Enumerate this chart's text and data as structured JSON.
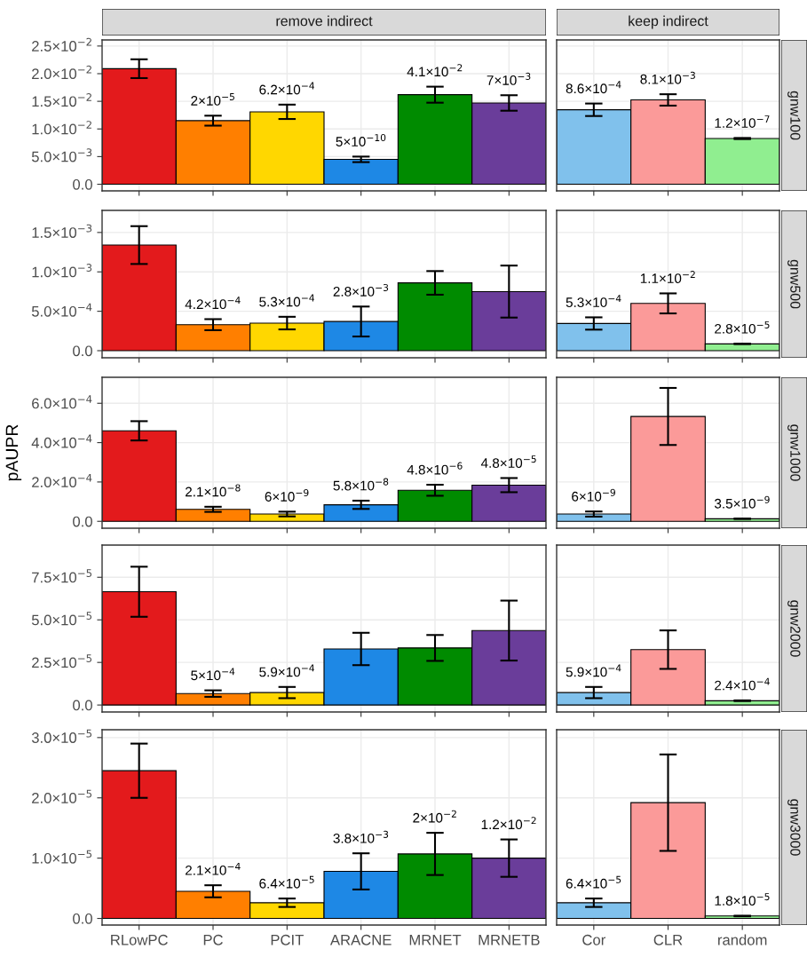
{
  "chart_data": [
    {
      "type": "bar",
      "title": "remove indirect",
      "categories": [
        "RLowPC",
        "PC",
        "PCIT",
        "ARACNE",
        "MRNET",
        "MRNETB"
      ],
      "values": [
        0.0209,
        0.0115,
        0.0131,
        0.0045,
        0.0162,
        0.0147
      ],
      "errors": [
        0.0017,
        0.0009,
        0.0013,
        0.0005,
        0.00145,
        0.0014
      ],
      "colors": [
        "#e31a1c",
        "#ff7f00",
        "#ffd700",
        "#1e88e5",
        "#008b00",
        "#6a3d9a"
      ],
      "ylim": [
        -0.0012,
        0.0261
      ],
      "yticks": [
        {
          "value": 0,
          "label": "0.0"
        },
        {
          "value": 0.005,
          "label": "5.0×10$^{−3}$"
        },
        {
          "value": 0.01,
          "label": "1.0×10$^{−2}$"
        },
        {
          "value": 0.015,
          "label": "1.5×10$^{−2}$"
        },
        {
          "value": 0.02,
          "label": "2.0×10$^{−2}$"
        },
        {
          "value": 0.025,
          "label": "2.5×10$^{−2}$"
        }
      ],
      "grid": true,
      "tick_labels": "y",
      "annotations": [
        {
          "text": "2×10$^{−5}$",
          "x": "PC",
          "y": 0.0124
        },
        {
          "text": "6.2×10$^{−4}$",
          "x": "PCIT",
          "y": 0.0144
        },
        {
          "text": "5×10$^{−10}$",
          "x": "ARACNE",
          "y": 0.005
        },
        {
          "text": "4.1×10$^{−2}$",
          "x": "MRNET",
          "y": 0.01765
        },
        {
          "text": "7×10$^{−3}$",
          "x": "MRNETB",
          "y": 0.0161
        }
      ]
    },
    {
      "type": "bar",
      "title": "keep indirect",
      "categories": [
        "Cor",
        "CLR",
        "random"
      ],
      "values": [
        0.01347,
        0.01525,
        0.00827
      ],
      "errors": [
        0.00113,
        0.00103,
        0.0001
      ],
      "colors": [
        "#80c1ec",
        "#fb9a99",
        "#90ee90"
      ],
      "ylim": [
        -0.0012,
        0.0261
      ],
      "yticks": [
        0,
        0.005,
        0.01,
        0.015,
        0.02,
        0.025
      ],
      "grid": true,
      "tick_labels": false,
      "annotations": [
        "gnw100",
        {
          "text": "8.6×10$^{−4}$",
          "x": "Cor",
          "y": 0.0146
        },
        {
          "text": "8.1×10$^{−3}$",
          "x": "CLR",
          "y": 0.01628
        },
        {
          "text": "1.2×10$^{−7}$",
          "x": "random",
          "y": 0.00837
        }
      ]
    },
    {
      "type": "bar",
      "categories": [
        "RLowPC",
        "PC",
        "PCIT",
        "ARACNE",
        "MRNET",
        "MRNETB"
      ],
      "values": [
        0.00134,
        0.00033,
        0.00035,
        0.00037,
        0.00086,
        0.00075
      ],
      "errors": [
        0.00024,
        7e-05,
        8e-05,
        0.00019,
        0.00015,
        0.00033
      ],
      "colors": [
        "#e31a1c",
        "#ff7f00",
        "#ffd700",
        "#1e88e5",
        "#008b00",
        "#6a3d9a"
      ],
      "ylim": [
        -9e-05,
        0.00178
      ],
      "yticks": [
        {
          "value": 0,
          "label": "0.0"
        },
        {
          "value": 0.0005,
          "label": "5.0×10$^{−4}$"
        },
        {
          "value": 0.001,
          "label": "1.0×10$^{−3}$"
        },
        {
          "value": 0.0015,
          "label": "1.5×10$^{−3}$"
        }
      ],
      "grid": true,
      "tick_labels": "y",
      "annotations": [
        {
          "text": "4.2×10$^{−4}$",
          "x": "PC",
          "y": 0.0004
        },
        {
          "text": "5.3×10$^{−4}$",
          "x": "PCIT",
          "y": 0.00043
        },
        {
          "text": "2.8×10$^{−3}$",
          "x": "ARACNE",
          "y": 0.00056
        }
      ]
    },
    {
      "type": "bar",
      "categories": [
        "Cor",
        "CLR",
        "random"
      ],
      "values": [
        0.000345,
        0.0006,
        8.6e-05
      ],
      "errors": [
        7.8e-05,
        0.000127,
        2e-06
      ],
      "colors": [
        "#80c1ec",
        "#fb9a99",
        "#90ee90"
      ],
      "ylim": [
        -9e-05,
        0.00178
      ],
      "yticks": [
        0,
        0.0005,
        0.001,
        0.0015
      ],
      "grid": true,
      "tick_labels": false,
      "annotations": [
        "gnw500",
        {
          "text": "5.3×10$^{−4}$",
          "x": "Cor",
          "y": 0.000423
        },
        {
          "text": "1.1×10$^{−2}$",
          "x": "CLR",
          "y": 0.000727
        },
        {
          "text": "2.8×10$^{−5}$",
          "x": "random",
          "y": 8.8e-05
        }
      ]
    },
    {
      "type": "bar",
      "ylabel": "pAUPR",
      "categories": [
        "RLowPC",
        "PC",
        "PCIT",
        "ARACNE",
        "MRNET",
        "MRNETB"
      ],
      "values": [
        0.00046,
        6.1e-05,
        3.7e-05,
        8.4e-05,
        0.000158,
        0.000184
      ],
      "errors": [
        4.9e-05,
        1.3e-05,
        1.2e-05,
        2.1e-05,
        2.8e-05,
        3.6e-05
      ],
      "colors": [
        "#e31a1c",
        "#ff7f00",
        "#ffd700",
        "#1e88e5",
        "#008b00",
        "#6a3d9a"
      ],
      "ylim": [
        -3.5e-05,
        0.000732
      ],
      "yticks": [
        {
          "value": 0,
          "label": "0.0"
        },
        {
          "value": 0.0002,
          "label": "2.0×10$^{−4}$"
        },
        {
          "value": 0.0004,
          "label": "4.0×10$^{−4}$"
        },
        {
          "value": 0.0006,
          "label": "6.0×10$^{−4}$"
        }
      ],
      "grid": true,
      "tick_labels": "y",
      "annotations": [
        {
          "text": "2.1×10$^{−8}$",
          "x": "PC",
          "y": 7.4e-05
        },
        {
          "text": "6×10$^{−9}$",
          "x": "PCIT",
          "y": 4.9e-05
        },
        {
          "text": "5.8×10$^{−8}$",
          "x": "ARACNE",
          "y": 0.000105
        },
        {
          "text": "4.8×10$^{−6}$",
          "x": "MRNET",
          "y": 0.000186
        },
        {
          "text": "4.8×10$^{−5}$",
          "x": "MRNETB",
          "y": 0.00022
        }
      ]
    },
    {
      "type": "bar",
      "categories": [
        "Cor",
        "CLR",
        "random"
      ],
      "values": [
        3.7e-05,
        0.000533,
        1.3e-05
      ],
      "errors": [
        1.3e-05,
        0.000145,
        1e-06
      ],
      "colors": [
        "#80c1ec",
        "#fb9a99",
        "#90ee90"
      ],
      "ylim": [
        -3.5e-05,
        0.000732
      ],
      "yticks": [
        0,
        0.0002,
        0.0004,
        0.0006
      ],
      "grid": true,
      "tick_labels": false,
      "annotations": [
        "gnw1000",
        {
          "text": "6×10$^{−9}$",
          "x": "Cor",
          "y": 5e-05
        },
        {
          "text": "3.5×10$^{−9}$",
          "x": "random",
          "y": 1.4e-05
        }
      ]
    },
    {
      "type": "bar",
      "categories": [
        "RLowPC",
        "PC",
        "PCIT",
        "ARACNE",
        "MRNET",
        "MRNETB"
      ],
      "values": [
        6.65e-05,
        6.7e-06,
        7.3e-06,
        3.29e-05,
        3.35e-05,
        4.37e-05
      ],
      "errors": [
        1.47e-05,
        1.9e-06,
        3.3e-06,
        9.5e-06,
        7.6e-06,
        1.76e-05
      ],
      "colors": [
        "#e31a1c",
        "#ff7f00",
        "#ffd700",
        "#1e88e5",
        "#008b00",
        "#6a3d9a"
      ],
      "ylim": [
        -4.1e-06,
        9.39e-05
      ],
      "yticks": [
        {
          "value": 0,
          "label": "0.0"
        },
        {
          "value": 2.5e-05,
          "label": "2.5×10$^{−5}$"
        },
        {
          "value": 5e-05,
          "label": "5.0×10$^{−5}$"
        },
        {
          "value": 7.5e-05,
          "label": "7.5×10$^{−5}$"
        }
      ],
      "grid": true,
      "tick_labels": "y",
      "annotations": [
        {
          "text": "5×10$^{−4}$",
          "x": "PC",
          "y": 8.6e-06
        },
        {
          "text": "5.9×10$^{−4}$",
          "x": "PCIT",
          "y": 1.06e-05
        }
      ]
    },
    {
      "type": "bar",
      "categories": [
        "Cor",
        "CLR",
        "random"
      ],
      "values": [
        7.3e-06,
        3.25e-05,
        2.5e-06
      ],
      "errors": [
        3.3e-06,
        1.13e-05,
        2e-07
      ],
      "colors": [
        "#80c1ec",
        "#fb9a99",
        "#90ee90"
      ],
      "ylim": [
        -4.1e-06,
        9.39e-05
      ],
      "yticks": [
        0,
        2.5e-05,
        5e-05,
        7.5e-05
      ],
      "grid": true,
      "tick_labels": false,
      "annotations": [
        "gnw2000",
        {
          "text": "5.9×10$^{−4}$",
          "x": "Cor",
          "y": 1.06e-05
        },
        {
          "text": "2.4×10$^{−4}$",
          "x": "random",
          "y": 2.7e-06
        }
      ]
    },
    {
      "type": "bar",
      "categories": [
        "RLowPC",
        "PC",
        "PCIT",
        "ARACNE",
        "MRNET",
        "MRNETB"
      ],
      "values": [
        2.45e-05,
        4.5e-06,
        2.6e-06,
        7.8e-06,
        1.07e-05,
        1e-05
      ],
      "errors": [
        4.5e-06,
        1e-06,
        7e-07,
        3e-06,
        3.5e-06,
        3.1e-06
      ],
      "colors": [
        "#e31a1c",
        "#ff7f00",
        "#ffd700",
        "#1e88e5",
        "#008b00",
        "#6a3d9a"
      ],
      "ylim": [
        -1.1e-06,
        3.13e-05
      ],
      "yticks": [
        {
          "value": 0,
          "label": "0.0"
        },
        {
          "value": 1e-05,
          "label": "1.0×10$^{−5}$"
        },
        {
          "value": 2e-05,
          "label": "2.0×10$^{−5}$"
        },
        {
          "value": 3e-05,
          "label": "3.0×10$^{−5}$"
        }
      ],
      "grid": true,
      "annotations": [
        {
          "text": "2.1×10$^{−4}$",
          "x": "PC",
          "y": 5.5e-06
        },
        {
          "text": "6.4×10$^{−5}$",
          "x": "PCIT",
          "y": 3.3e-06
        },
        {
          "text": "3.8×10$^{−3}$",
          "x": "ARACNE",
          "y": 1.08e-05
        },
        {
          "text": "2×10$^{−2}$",
          "x": "MRNET",
          "y": 1.42e-05
        },
        {
          "text": "1.2×10$^{−2}$",
          "x": "MRNETB",
          "y": 1.31e-05
        }
      ]
    },
    {
      "type": "bar",
      "categories": [
        "Cor",
        "CLR",
        "random"
      ],
      "values": [
        2.6e-06,
        1.92e-05,
        4e-07
      ],
      "errors": [
        7e-07,
        8e-06,
        5e-08
      ],
      "colors": [
        "#80c1ec",
        "#fb9a99",
        "#90ee90"
      ],
      "ylim": [
        -1.1e-06,
        3.13e-05
      ],
      "yticks": [
        0,
        1e-05,
        2e-05,
        3e-05
      ],
      "grid": true,
      "tick_labels": "x",
      "annotations": [
        "gnw3000",
        {
          "text": "6.4×10$^{−5}$",
          "x": "Cor",
          "y": 3.3e-06
        },
        {
          "text": "1.8×10$^{−5}$",
          "x": "random",
          "y": 4.5e-07
        }
      ]
    }
  ]
}
